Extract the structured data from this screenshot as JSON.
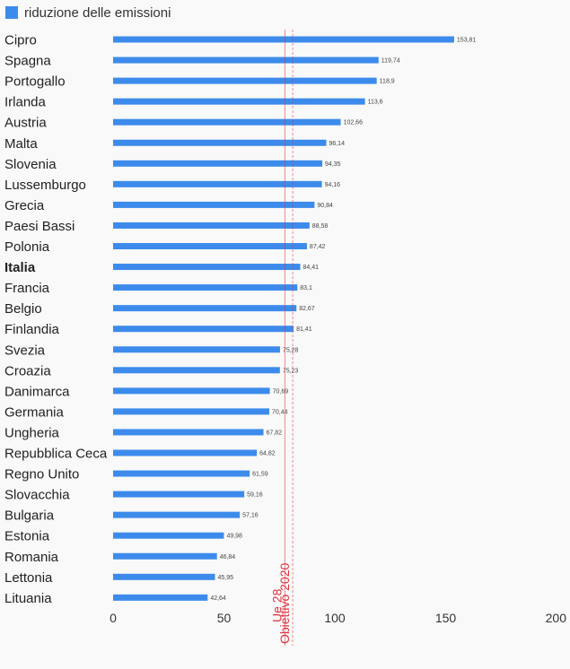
{
  "legend": {
    "label": "riduzione delle emissioni"
  },
  "colors": {
    "bar": "#3c8bec",
    "reference": "#e0323c"
  },
  "chart_data": {
    "type": "bar",
    "orientation": "horizontal",
    "categories": [
      "Cipro",
      "Spagna",
      "Portogallo",
      "Irlanda",
      "Austria",
      "Malta",
      "Slovenia",
      "Lussemburgo",
      "Grecia",
      "Paesi Bassi",
      "Polonia",
      "Italia",
      "Francia",
      "Belgio",
      "Finlandia",
      "Svezia",
      "Croazia",
      "Danimarca",
      "Germania",
      "Ungheria",
      "Repubblica Ceca",
      "Regno Unito",
      "Slovacchia",
      "Bulgaria",
      "Estonia",
      "Romania",
      "Lettonia",
      "Lituania"
    ],
    "highlight": "Italia",
    "series": [
      {
        "name": "riduzione delle emissioni",
        "values": [
          153.81,
          119.74,
          118.9,
          113.6,
          102.66,
          96.14,
          94.35,
          94.16,
          90.84,
          88.58,
          87.42,
          84.41,
          83.1,
          82.67,
          81.41,
          75.28,
          75.23,
          70.69,
          70.44,
          67.82,
          64.82,
          61.59,
          59.16,
          57.16,
          49.98,
          46.84,
          45.95,
          42.64
        ],
        "data_labels": [
          "153,81",
          "119,74",
          "118,9",
          "113,6",
          "102,66",
          "96,14",
          "94,35",
          "94,16",
          "90,84",
          "88,58",
          "87,42",
          "84,41",
          "83,1",
          "82,67",
          "81,41",
          "75,28",
          "75,23",
          "70,69",
          "70,44",
          "67,82",
          "64,82",
          "61,59",
          "59,16",
          "57,16",
          "49,98",
          "46,84",
          "45,95",
          "42,64"
        ]
      }
    ],
    "xlim": [
      0,
      200
    ],
    "xticks": [
      0,
      50,
      100,
      150,
      200
    ],
    "tick_labels": [
      "0",
      "50",
      "100",
      "150",
      "200"
    ],
    "reference_lines": [
      {
        "label": "Ue 28",
        "value": 77.5
      },
      {
        "label": "Obiettivo 2020",
        "value": 81
      }
    ]
  }
}
